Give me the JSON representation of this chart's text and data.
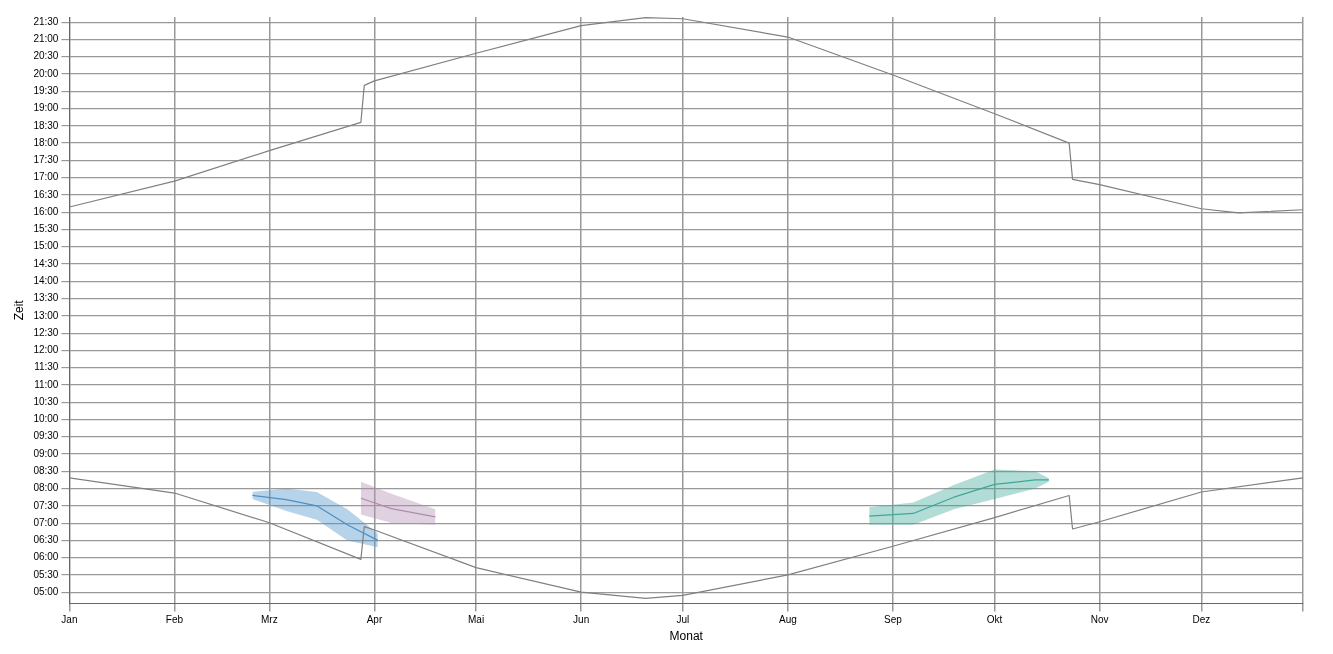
{
  "chart_data": {
    "type": "line",
    "xlabel": "Monat",
    "ylabel": "Zeit",
    "grid": true,
    "legend": false,
    "marker": "none",
    "xlim": [
      "--01-01",
      "--12-31"
    ],
    "ylim": [
      4.67,
      21.65
    ],
    "xticks": [
      {
        "value": "--01-01",
        "label": "Jan"
      },
      {
        "value": "--02-01",
        "label": "Feb"
      },
      {
        "value": "--03-01",
        "label": "Mrz"
      },
      {
        "value": "--04-01",
        "label": "Apr"
      },
      {
        "value": "--05-01",
        "label": "Mai"
      },
      {
        "value": "--06-01",
        "label": "Jun"
      },
      {
        "value": "--07-01",
        "label": "Jul"
      },
      {
        "value": "--08-01",
        "label": "Aug"
      },
      {
        "value": "--09-01",
        "label": "Sep"
      },
      {
        "value": "--10-01",
        "label": "Okt"
      },
      {
        "value": "--11-01",
        "label": "Nov"
      },
      {
        "value": "--12-01",
        "label": "Dez"
      },
      {
        "value": "--12-31",
        "label": null
      }
    ],
    "yticks": [
      {
        "value": 5,
        "label": "05:00"
      },
      {
        "value": 5.5,
        "label": "05:30"
      },
      {
        "value": 6,
        "label": "06:00"
      },
      {
        "value": 6.5,
        "label": "06:30"
      },
      {
        "value": 7,
        "label": "07:00"
      },
      {
        "value": 7.5,
        "label": "07:30"
      },
      {
        "value": 8,
        "label": "08:00"
      },
      {
        "value": 8.5,
        "label": "08:30"
      },
      {
        "value": 9,
        "label": "09:00"
      },
      {
        "value": 9.5,
        "label": "09:30"
      },
      {
        "value": 10,
        "label": "10:00"
      },
      {
        "value": 10.5,
        "label": "10:30"
      },
      {
        "value": 11,
        "label": "11:00"
      },
      {
        "value": 11.5,
        "label": "11:30"
      },
      {
        "value": 12,
        "label": "12:00"
      },
      {
        "value": 12.5,
        "label": "12:30"
      },
      {
        "value": 13,
        "label": "13:00"
      },
      {
        "value": 13.5,
        "label": "13:30"
      },
      {
        "value": 14,
        "label": "14:00"
      },
      {
        "value": 14.5,
        "label": "14:30"
      },
      {
        "value": 15,
        "label": "15:00"
      },
      {
        "value": 15.5,
        "label": "15:30"
      },
      {
        "value": 16,
        "label": "16:00"
      },
      {
        "value": 16.5,
        "label": "16:30"
      },
      {
        "value": 17,
        "label": "17:00"
      },
      {
        "value": 17.5,
        "label": "17:30"
      },
      {
        "value": 18,
        "label": "18:00"
      },
      {
        "value": 18.5,
        "label": "18:30"
      },
      {
        "value": 19,
        "label": "19:00"
      },
      {
        "value": 19.5,
        "label": "19:30"
      },
      {
        "value": 20,
        "label": "20:00"
      },
      {
        "value": 20.5,
        "label": "20:30"
      },
      {
        "value": 21,
        "label": "21:00"
      },
      {
        "value": 21.5,
        "label": "21:30"
      }
    ],
    "series": [
      {
        "color": "#808080",
        "x": [
          "--01-01",
          "--02-01",
          "--03-01",
          "--03-28",
          "--03-29",
          "--04-01",
          "--05-01",
          "--06-01",
          "--06-20",
          "--07-01",
          "--08-01",
          "--09-01",
          "--10-01",
          "--10-23",
          "--10-24",
          "--11-01",
          "--12-01",
          "--12-12",
          "--12-31"
        ],
        "values": [
          16.15,
          16.9,
          17.78,
          18.6,
          19.67,
          19.8,
          20.6,
          21.4,
          21.63,
          21.6,
          21.07,
          19.97,
          18.85,
          18.0,
          16.95,
          16.8,
          16.1,
          15.98,
          16.07
        ]
      },
      {
        "color": "#808080",
        "x": [
          "--01-01",
          "--02-01",
          "--03-01",
          "--03-28",
          "--03-29",
          "--04-01",
          "--05-01",
          "--06-01",
          "--06-20",
          "--07-01",
          "--08-01",
          "--09-01",
          "--10-01",
          "--10-23",
          "--10-24",
          "--11-01",
          "--12-01",
          "--12-31"
        ],
        "values": [
          8.31,
          7.87,
          7.01,
          5.95,
          6.9,
          6.8,
          5.71,
          5.0,
          4.82,
          4.91,
          5.5,
          6.33,
          7.16,
          7.8,
          6.83,
          7.04,
          7.9,
          8.31
        ]
      },
      {
        "color": "#4a90c8",
        "x": [
          "--02-24",
          "--03-06",
          "--03-15",
          "--03-24",
          "--04-02"
        ],
        "values": [
          7.8,
          7.68,
          7.5,
          6.95,
          6.5
        ],
        "lower": [
          7.7,
          7.35,
          7.1,
          6.5,
          6.3
        ],
        "upper": [
          7.9,
          8.0,
          7.9,
          7.4,
          6.7
        ]
      },
      {
        "color": "#b08cb0",
        "x": [
          "--03-28",
          "--04-06",
          "--04-19"
        ],
        "values": [
          7.72,
          7.42,
          7.18
        ],
        "lower": [
          7.25,
          7.0,
          6.95
        ],
        "upper": [
          8.2,
          7.85,
          7.4
        ]
      },
      {
        "color": "#3fa898",
        "x": [
          "--08-25",
          "--09-07",
          "--09-19",
          "--10-01",
          "--10-13",
          "--10-17"
        ],
        "values": [
          7.2,
          7.28,
          7.75,
          8.12,
          8.25,
          8.25
        ],
        "lower": [
          6.95,
          6.95,
          7.4,
          7.7,
          8.0,
          8.2
        ],
        "upper": [
          7.46,
          7.6,
          8.1,
          8.55,
          8.5,
          8.3
        ]
      }
    ]
  }
}
